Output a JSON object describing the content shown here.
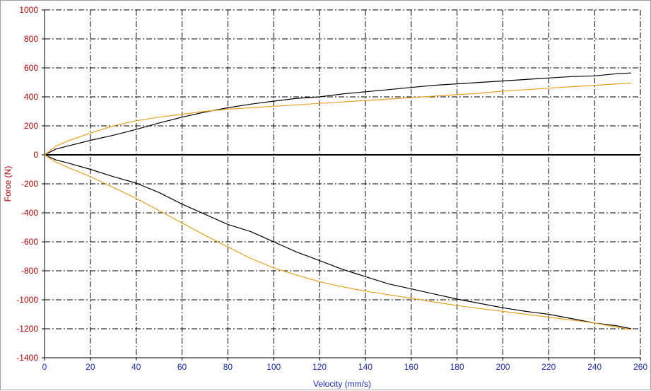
{
  "chart_data": {
    "type": "line",
    "title": "",
    "xlabel": "Velocity (mm/s)",
    "ylabel": "Force (N)",
    "xlim": [
      0,
      260
    ],
    "ylim": [
      -1400,
      1000
    ],
    "x_ticks": [
      0,
      20,
      40,
      60,
      80,
      100,
      120,
      140,
      160,
      180,
      200,
      220,
      240,
      260
    ],
    "y_ticks": [
      1000,
      800,
      600,
      400,
      200,
      0,
      -200,
      -400,
      -600,
      -800,
      -1000,
      -1200,
      -1400
    ],
    "grid": true,
    "legend": "none",
    "zero_line": true,
    "colors": {
      "black": "#000000",
      "orange": "#e8a020",
      "x_axis_text": "#1a2bb5",
      "y_axis_text": "#b00000"
    },
    "series": [
      {
        "color": "#000000",
        "x": [
          0,
          5,
          10,
          20,
          30,
          40,
          50,
          60,
          70,
          80,
          90,
          100,
          110,
          120,
          130,
          140,
          150,
          160,
          170,
          180,
          190,
          200,
          210,
          220,
          230,
          240,
          250,
          256
        ],
        "y": [
          0,
          40,
          60,
          100,
          135,
          175,
          220,
          260,
          295,
          325,
          350,
          370,
          390,
          400,
          420,
          435,
          450,
          465,
          480,
          490,
          500,
          510,
          520,
          530,
          540,
          545,
          560,
          565
        ]
      },
      {
        "color": "#e8a020",
        "x": [
          0,
          5,
          10,
          20,
          30,
          40,
          50,
          60,
          70,
          80,
          90,
          100,
          110,
          120,
          130,
          140,
          150,
          160,
          170,
          180,
          190,
          200,
          210,
          220,
          230,
          240,
          250,
          256
        ],
        "y": [
          0,
          60,
          95,
          150,
          200,
          235,
          260,
          280,
          300,
          315,
          325,
          335,
          345,
          355,
          365,
          375,
          385,
          395,
          405,
          415,
          425,
          440,
          450,
          460,
          470,
          480,
          490,
          495
        ]
      },
      {
        "color": "#000000",
        "x": [
          0,
          5,
          10,
          20,
          30,
          40,
          50,
          60,
          70,
          80,
          90,
          100,
          110,
          120,
          130,
          140,
          150,
          160,
          170,
          180,
          190,
          200,
          210,
          220,
          230,
          240,
          250,
          256
        ],
        "y": [
          0,
          -35,
          -55,
          -100,
          -150,
          -195,
          -260,
          -340,
          -410,
          -480,
          -530,
          -600,
          -670,
          -730,
          -790,
          -840,
          -890,
          -925,
          -960,
          -995,
          -1025,
          -1055,
          -1080,
          -1100,
          -1130,
          -1160,
          -1180,
          -1200
        ]
      },
      {
        "color": "#e8a020",
        "x": [
          0,
          5,
          10,
          20,
          30,
          40,
          50,
          60,
          70,
          80,
          90,
          100,
          110,
          120,
          130,
          140,
          150,
          160,
          170,
          180,
          190,
          200,
          210,
          220,
          230,
          240,
          250,
          256
        ],
        "y": [
          0,
          -50,
          -85,
          -150,
          -225,
          -300,
          -385,
          -470,
          -555,
          -635,
          -715,
          -780,
          -830,
          -875,
          -910,
          -940,
          -965,
          -990,
          -1015,
          -1040,
          -1060,
          -1080,
          -1100,
          -1120,
          -1140,
          -1160,
          -1190,
          -1205
        ]
      }
    ]
  }
}
